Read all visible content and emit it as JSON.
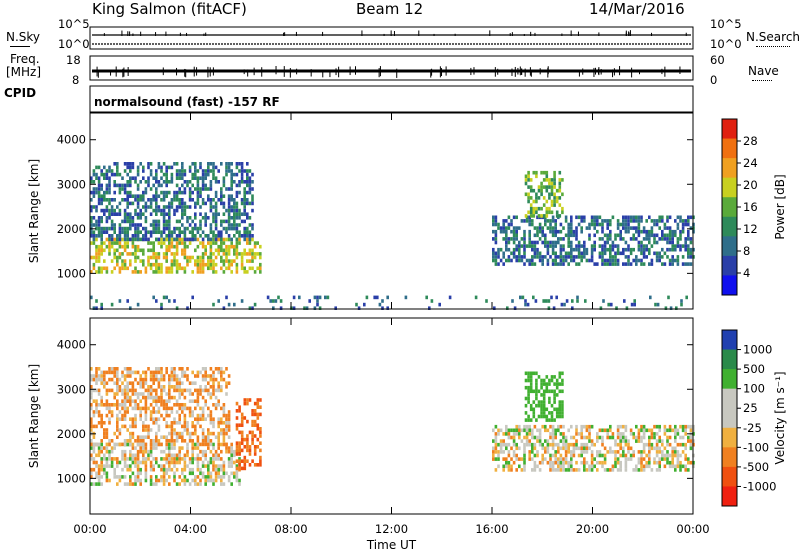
{
  "header": {
    "station": "King Salmon (fitACF)",
    "beam": "Beam 12",
    "date": "14/Mar/2016"
  },
  "summary_panel": {
    "nsky_label": "N.Sky",
    "nsky_ticks": [
      "10^5",
      "10^0"
    ],
    "nsearch_label": "N.Search",
    "nsearch_ticks": [
      "10^5",
      "10^0"
    ],
    "freq_label_line1": "Freq.",
    "freq_label_line2": "[MHz]",
    "freq_ticks": [
      "18",
      "8"
    ],
    "nave_label": "Nave",
    "nave_ticks": [
      "60",
      "0"
    ],
    "cpid_label": "CPID",
    "cpid_value": "normalsound (fast) -157 RF"
  },
  "colors": {
    "power_scale": [
      "#1010ee",
      "#2a3fa8",
      "#2f6e8a",
      "#2e8a5a",
      "#5aaa3a",
      "#c8d020",
      "#f0a020",
      "#f07010",
      "#e02010"
    ],
    "velocity_scale": [
      "#f02010",
      "#f05010",
      "#f08020",
      "#f0b040",
      "#c8c8c0",
      "#c8c8c0",
      "#40b030",
      "#2a8a4a",
      "#2040b0"
    ]
  },
  "chart_data": [
    {
      "type": "heatmap",
      "name_hint": "power",
      "ylabel": "Slant Range [km]",
      "ylim": [
        200,
        4600
      ],
      "yticks": [
        "1000",
        "2000",
        "3000",
        "4000"
      ],
      "xlim": [
        "00:00",
        "24:00"
      ],
      "colorbar_label": "Power [dB]",
      "colorbar_ticks": [
        "28",
        "24",
        "20",
        "16",
        "12",
        "8",
        "4"
      ],
      "colorbar_range": [
        0,
        32
      ],
      "regions": [
        {
          "t_start": 0.0,
          "t_end": 6.8,
          "r_low": 1000,
          "r_high": 1800,
          "power": 20
        },
        {
          "t_start": 0.0,
          "t_end": 6.5,
          "r_low": 1800,
          "r_high": 3500,
          "power": 8
        },
        {
          "t_start": 16.0,
          "t_end": 24.0,
          "r_low": 1200,
          "r_high": 2300,
          "power": 8
        },
        {
          "t_start": 17.3,
          "t_end": 18.8,
          "r_low": 2300,
          "r_high": 3300,
          "power": 16
        },
        {
          "t_start": 0.0,
          "t_end": 24.0,
          "r_low": 200,
          "r_high": 500,
          "power": 8
        }
      ]
    },
    {
      "type": "heatmap",
      "name_hint": "velocity",
      "ylabel": "Slant Range [km]",
      "ylim": [
        200,
        4600
      ],
      "yticks": [
        "1000",
        "2000",
        "3000",
        "4000"
      ],
      "xlim": [
        "00:00",
        "24:00"
      ],
      "xlabel": "Time UT",
      "xticks": [
        "00:00",
        "04:00",
        "08:00",
        "12:00",
        "16:00",
        "20:00",
        "00:00"
      ],
      "colorbar_label": "Velocity [m s⁻¹]",
      "colorbar_ticks": [
        "1000",
        "500",
        "100",
        "25",
        "-25",
        "-100",
        "-500",
        "-1000"
      ],
      "regions": [
        {
          "t_start": 0.0,
          "t_end": 6.0,
          "r_low": 900,
          "r_high": 1800,
          "velocity": 0
        },
        {
          "t_start": 5.8,
          "t_end": 6.8,
          "r_low": 1200,
          "r_high": 2800,
          "velocity": -300
        },
        {
          "t_start": 0.0,
          "t_end": 5.5,
          "r_low": 1800,
          "r_high": 3500,
          "velocity": -60
        },
        {
          "t_start": 16.0,
          "t_end": 24.0,
          "r_low": 1200,
          "r_high": 2200,
          "velocity": 0
        },
        {
          "t_start": 17.3,
          "t_end": 18.8,
          "r_low": 2300,
          "r_high": 3400,
          "velocity": 200
        }
      ]
    }
  ]
}
